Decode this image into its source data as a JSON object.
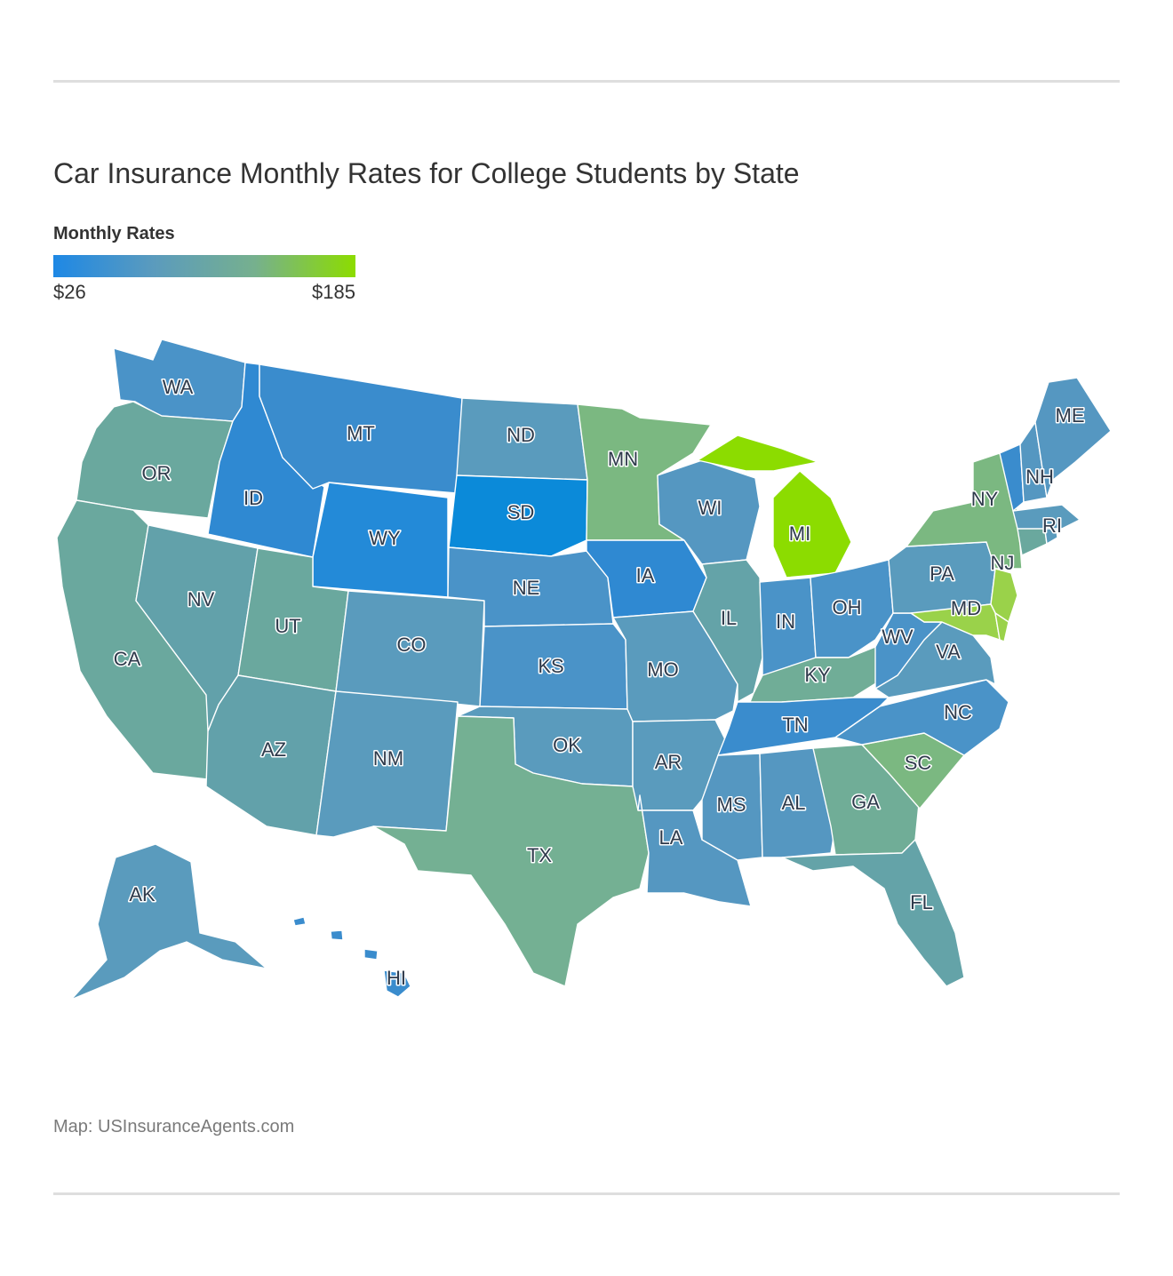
{
  "header": {
    "title": "Car Insurance Monthly Rates for College Students by State"
  },
  "legend": {
    "title": "Monthly Rates",
    "min_label": "$26",
    "max_label": "$185",
    "colors": [
      "#1e88e5",
      "#5b9bbd",
      "#76b08e",
      "#8cdc00"
    ]
  },
  "footer": {
    "credit": "Map: USInsuranceAgents.com"
  },
  "colors": {
    "rule": "#dedede",
    "blue_strong": "#0b8ad9",
    "blue": "#2f89d2",
    "blue_mid": "#4a93c8",
    "steel": "#5a9bbd",
    "teal": "#64a3a8",
    "green_teal": "#70ad97",
    "green": "#7bb881",
    "green_bright": "#9ad24a",
    "lime": "#8cdc00"
  },
  "map": {
    "states": [
      {
        "abbr": "WA",
        "color": "#4a93c8"
      },
      {
        "abbr": "OR",
        "color": "#6aa89e"
      },
      {
        "abbr": "CA",
        "color": "#6aa89e"
      },
      {
        "abbr": "NV",
        "color": "#62a1aa"
      },
      {
        "abbr": "ID",
        "color": "#2f89d2"
      },
      {
        "abbr": "MT",
        "color": "#3a8ccd"
      },
      {
        "abbr": "WY",
        "color": "#238ad8"
      },
      {
        "abbr": "UT",
        "color": "#6aa89e"
      },
      {
        "abbr": "AZ",
        "color": "#62a1aa"
      },
      {
        "abbr": "CO",
        "color": "#5a9bbd"
      },
      {
        "abbr": "NM",
        "color": "#5a9bbd"
      },
      {
        "abbr": "ND",
        "color": "#5a9bbd"
      },
      {
        "abbr": "SD",
        "color": "#0b8ad9"
      },
      {
        "abbr": "NE",
        "color": "#4a93c8"
      },
      {
        "abbr": "KS",
        "color": "#4a93c8"
      },
      {
        "abbr": "OK",
        "color": "#5a9bbd"
      },
      {
        "abbr": "TX",
        "color": "#74b093"
      },
      {
        "abbr": "MN",
        "color": "#7bb881"
      },
      {
        "abbr": "IA",
        "color": "#2f89d2"
      },
      {
        "abbr": "MO",
        "color": "#5a9bbd"
      },
      {
        "abbr": "AR",
        "color": "#5a9bbd"
      },
      {
        "abbr": "LA",
        "color": "#5597c1"
      },
      {
        "abbr": "WI",
        "color": "#5597c1"
      },
      {
        "abbr": "IL",
        "color": "#64a3a8"
      },
      {
        "abbr": "MI",
        "color": "#8cdc00"
      },
      {
        "abbr": "IN",
        "color": "#4a93c8"
      },
      {
        "abbr": "OH",
        "color": "#4a93c8"
      },
      {
        "abbr": "KY",
        "color": "#70ad97"
      },
      {
        "abbr": "TN",
        "color": "#3a8ccd"
      },
      {
        "abbr": "MS",
        "color": "#5597c1"
      },
      {
        "abbr": "AL",
        "color": "#5597c1"
      },
      {
        "abbr": "GA",
        "color": "#70ad97"
      },
      {
        "abbr": "FL",
        "color": "#64a3a8"
      },
      {
        "abbr": "SC",
        "color": "#7bb881"
      },
      {
        "abbr": "NC",
        "color": "#4a93c8"
      },
      {
        "abbr": "VA",
        "color": "#5a9bbd"
      },
      {
        "abbr": "WV",
        "color": "#4a93c8"
      },
      {
        "abbr": "PA",
        "color": "#5a9bbd"
      },
      {
        "abbr": "NY",
        "color": "#7bb881"
      },
      {
        "abbr": "NJ",
        "color": "#9ad24a"
      },
      {
        "abbr": "MD",
        "color": "#9ad24a"
      },
      {
        "abbr": "DE",
        "color": "#9ad24a"
      },
      {
        "abbr": "CT",
        "color": "#6aa89e"
      },
      {
        "abbr": "RI",
        "color": "#5a9bbd"
      },
      {
        "abbr": "MA",
        "color": "#5a9bbd"
      },
      {
        "abbr": "VT",
        "color": "#3a8ccd"
      },
      {
        "abbr": "NH",
        "color": "#5597c1"
      },
      {
        "abbr": "ME",
        "color": "#5597c1"
      },
      {
        "abbr": "AK",
        "color": "#5a9bbd"
      },
      {
        "abbr": "HI",
        "color": "#3a8ccd"
      }
    ]
  }
}
